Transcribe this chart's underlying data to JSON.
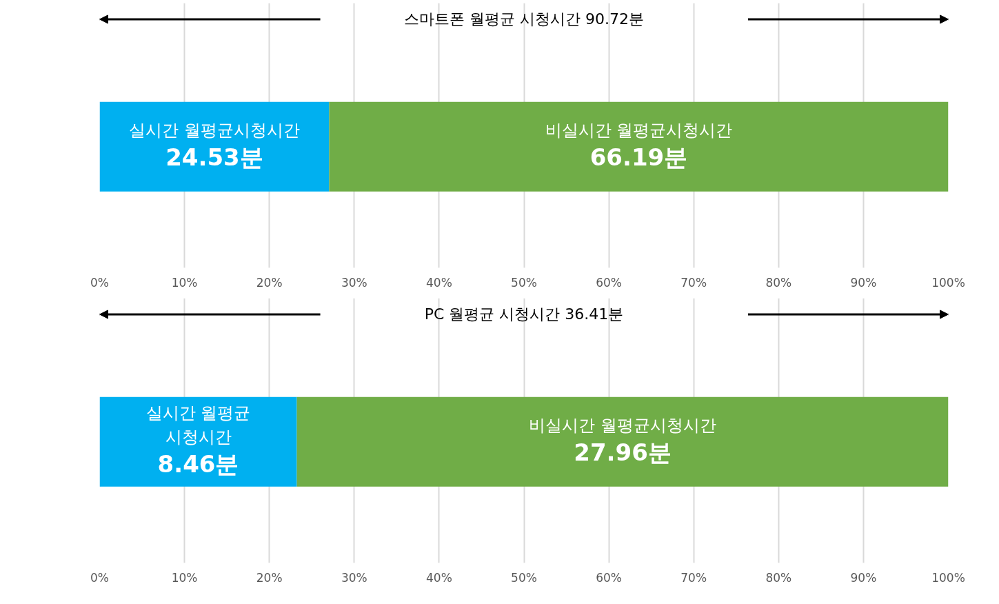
{
  "chart_data": [
    {
      "type": "bar",
      "title": "스마트폰 월평균 시청시간 90.72분",
      "orientation": "horizontal",
      "stacked": true,
      "categories": [
        null
      ],
      "series": [
        {
          "name": "실시간 월평균시청시간",
          "color": "#00b0f0",
          "values": [
            27.04
          ]
        },
        {
          "name": "비실시간 월평균시청시간",
          "color": "#70ad47",
          "values": [
            72.96
          ]
        }
      ],
      "annotations": [
        "24.53분",
        "66.19분"
      ],
      "xlim": [
        0,
        100
      ],
      "xticks": [
        {
          "value": 0,
          "label": "0%"
        },
        {
          "value": 10,
          "label": "10%"
        },
        {
          "value": 20,
          "label": "20%"
        },
        {
          "value": 30,
          "label": "30%"
        },
        {
          "value": 40,
          "label": "40%"
        },
        {
          "value": 50,
          "label": "50%"
        },
        {
          "value": 60,
          "label": "60%"
        },
        {
          "value": 70,
          "label": "70%"
        },
        {
          "value": 80,
          "label": "80%"
        },
        {
          "value": 90,
          "label": "90%"
        },
        {
          "value": 100,
          "label": "100%"
        }
      ],
      "grid": "x",
      "legend": false
    },
    {
      "type": "bar",
      "title": "PC 월평균 시청시간 36.41분",
      "orientation": "horizontal",
      "stacked": true,
      "categories": [
        null
      ],
      "series": [
        {
          "name": "실시간 월평균 시청시간",
          "color": "#00b0f0",
          "values": [
            23.24
          ]
        },
        {
          "name": "비실시간 월평균시청시간",
          "color": "#70ad47",
          "values": [
            76.76
          ]
        }
      ],
      "annotations": [
        "8.46분",
        "27.96분"
      ],
      "xlim": [
        0,
        100
      ],
      "xticks": [
        {
          "value": 0,
          "label": "0%"
        },
        {
          "value": 10,
          "label": "10%"
        },
        {
          "value": 20,
          "label": "20%"
        },
        {
          "value": 30,
          "label": "30%"
        },
        {
          "value": 40,
          "label": "40%"
        },
        {
          "value": 50,
          "label": "50%"
        },
        {
          "value": 60,
          "label": "60%"
        },
        {
          "value": 70,
          "label": "70%"
        },
        {
          "value": 80,
          "label": "80%"
        },
        {
          "value": 90,
          "label": "90%"
        },
        {
          "value": 100,
          "label": "100%"
        }
      ],
      "grid": "x",
      "legend": false
    }
  ]
}
